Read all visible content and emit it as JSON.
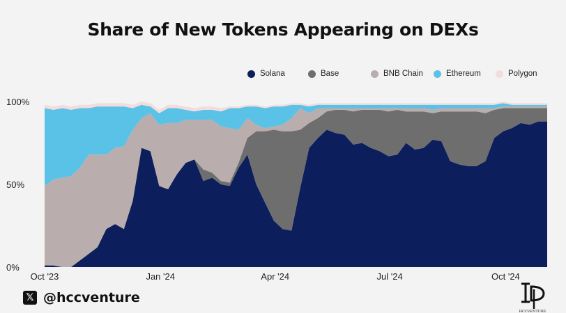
{
  "page": {
    "title": "Share of New Tokens Appearing on DEXs",
    "handle": "@hccventure",
    "brand_text": "HCCVENTURE"
  },
  "colors": {
    "Solana": "#0c1f5c",
    "Base": "#6e6e6e",
    "BNB Chain": "#b9adad",
    "Ethereum": "#5ac2e7",
    "Polygon": "#f2dcdc"
  },
  "chart_data": {
    "type": "area",
    "stacked": true,
    "title": "Share of New Tokens Appearing on DEXs",
    "xlabel": "",
    "ylabel": "",
    "ylim": [
      0,
      100
    ],
    "y_ticks": [
      "0%",
      "50%",
      "100%"
    ],
    "x_ticks": [
      "Oct '23",
      "Jan '24",
      "Apr '24",
      "Jul '24",
      "Oct '24"
    ],
    "x_tick_dates": [
      "2023-10-01",
      "2024-01-01",
      "2024-04-01",
      "2024-07-01",
      "2024-10-01"
    ],
    "legend_position": "top-right",
    "grid": false,
    "x": [
      "2023-10-01",
      "2023-10-08",
      "2023-10-15",
      "2023-10-22",
      "2023-10-29",
      "2023-11-05",
      "2023-11-12",
      "2023-11-19",
      "2023-11-26",
      "2023-12-03",
      "2023-12-10",
      "2023-12-17",
      "2023-12-24",
      "2023-12-31",
      "2024-01-07",
      "2024-01-14",
      "2024-01-21",
      "2024-01-28",
      "2024-02-04",
      "2024-02-11",
      "2024-02-18",
      "2024-02-25",
      "2024-03-03",
      "2024-03-10",
      "2024-03-17",
      "2024-03-24",
      "2024-03-31",
      "2024-04-07",
      "2024-04-14",
      "2024-04-21",
      "2024-04-28",
      "2024-05-05",
      "2024-05-12",
      "2024-05-19",
      "2024-05-26",
      "2024-06-02",
      "2024-06-09",
      "2024-06-16",
      "2024-06-23",
      "2024-06-30",
      "2024-07-07",
      "2024-07-14",
      "2024-07-21",
      "2024-07-28",
      "2024-08-04",
      "2024-08-11",
      "2024-08-18",
      "2024-08-25",
      "2024-09-01",
      "2024-09-08",
      "2024-09-15",
      "2024-09-22",
      "2024-09-29",
      "2024-10-06",
      "2024-10-13",
      "2024-10-20",
      "2024-10-27",
      "2024-11-03"
    ],
    "series": [
      {
        "name": "Solana",
        "values": [
          1,
          1,
          0,
          0,
          4,
          8,
          12,
          23,
          26,
          23,
          40,
          72,
          70,
          49,
          47,
          56,
          63,
          65,
          52,
          54,
          50,
          49,
          60,
          68,
          50,
          39,
          28,
          23,
          22,
          48,
          72,
          78,
          83,
          81,
          80,
          74,
          75,
          72,
          70,
          67,
          68,
          75,
          71,
          72,
          77,
          76,
          64,
          62,
          61,
          61,
          64,
          78,
          82,
          84,
          87,
          86,
          88,
          88
        ]
      },
      {
        "name": "Base",
        "values": [
          0,
          0,
          0,
          0,
          0,
          0,
          0,
          0,
          0,
          0,
          0,
          0,
          0,
          0,
          0,
          0,
          0,
          0,
          7,
          3,
          2,
          2,
          3,
          10,
          32,
          43,
          55,
          59,
          60,
          35,
          15,
          12,
          11,
          14,
          15,
          20,
          20,
          23,
          25,
          27,
          27,
          19,
          23,
          22,
          16,
          18,
          30,
          32,
          33,
          33,
          29,
          17,
          14,
          12,
          9,
          10,
          8,
          8
        ]
      },
      {
        "name": "BNB Chain",
        "values": [
          48,
          52,
          54,
          55,
          56,
          60,
          56,
          45,
          46,
          50,
          43,
          18,
          23,
          37,
          40,
          31,
          26,
          24,
          30,
          32,
          33,
          33,
          20,
          12,
          4,
          2,
          2,
          4,
          8,
          13,
          6,
          6,
          2,
          1,
          1,
          2,
          1,
          1,
          1,
          2,
          1,
          2,
          2,
          2,
          2,
          2,
          2,
          2,
          2,
          2,
          3,
          1,
          1,
          1,
          1,
          1,
          1,
          1
        ]
      },
      {
        "name": "Ethereum",
        "values": [
          47,
          42,
          42,
          40,
          36,
          28,
          29,
          29,
          25,
          24,
          13,
          8,
          4,
          7,
          9,
          9,
          6,
          5,
          6,
          6,
          9,
          12,
          13,
          7,
          11,
          12,
          12,
          11,
          8,
          2,
          4,
          2,
          2,
          2,
          2,
          2,
          2,
          2,
          2,
          2,
          2,
          2,
          2,
          2,
          3,
          2,
          2,
          2,
          2,
          2,
          2,
          2,
          2,
          1,
          1,
          1,
          1,
          1
        ]
      },
      {
        "name": "Polygon",
        "values": [
          2,
          2,
          2,
          2,
          2,
          2,
          2,
          2,
          2,
          2,
          2,
          2,
          2,
          2,
          2,
          2,
          2,
          2,
          2,
          2,
          2,
          1,
          1,
          1,
          1,
          1,
          1,
          1,
          1,
          1,
          1,
          1,
          1,
          1,
          1,
          1,
          1,
          1,
          1,
          1,
          1,
          1,
          1,
          1,
          1,
          1,
          1,
          1,
          1,
          1,
          1,
          1,
          1,
          1,
          1,
          1,
          1,
          1
        ]
      }
    ]
  }
}
